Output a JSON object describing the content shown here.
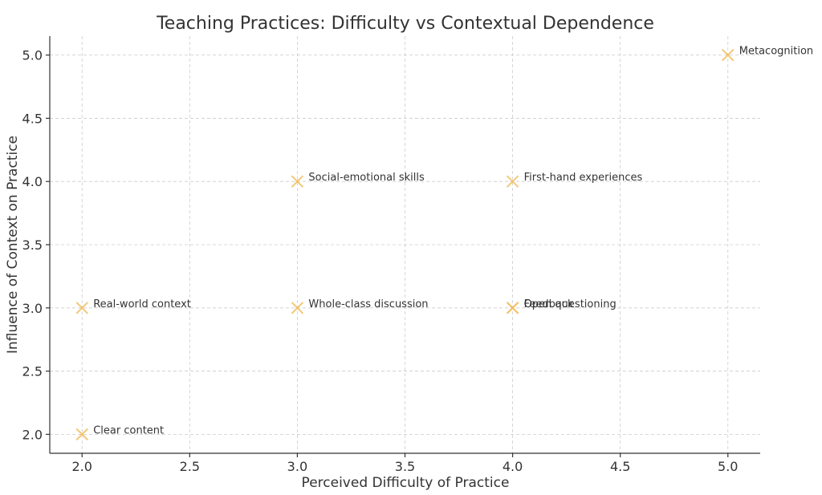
{
  "chart_data": {
    "type": "scatter",
    "title": "Teaching Practices: Difficulty vs Contextual Dependence",
    "xlabel": "Perceived Difficulty of Practice",
    "ylabel": "Influence of Context on Practice",
    "xlim": [
      1.85,
      5.15
    ],
    "ylim": [
      1.85,
      5.15
    ],
    "xticks": [
      "2.0",
      "2.5",
      "3.0",
      "3.5",
      "4.0",
      "4.5",
      "5.0"
    ],
    "yticks": [
      "2.0",
      "2.5",
      "3.0",
      "3.5",
      "4.0",
      "4.5",
      "5.0"
    ],
    "grid": true,
    "marker": "x",
    "marker_color": "#F0C060",
    "points": [
      {
        "label": "Clear content",
        "x": 2.0,
        "y": 2.0
      },
      {
        "label": "Real-world context",
        "x": 2.0,
        "y": 3.0
      },
      {
        "label": "Whole-class discussion",
        "x": 3.0,
        "y": 3.0
      },
      {
        "label": "Social-emotional skills",
        "x": 3.0,
        "y": 4.0
      },
      {
        "label": "Feedback",
        "x": 4.0,
        "y": 3.0
      },
      {
        "label": "Open questioning",
        "x": 4.0,
        "y": 3.0
      },
      {
        "label": "First-hand experiences",
        "x": 4.0,
        "y": 4.0
      },
      {
        "label": "Metacognition",
        "x": 5.0,
        "y": 5.0
      }
    ]
  }
}
